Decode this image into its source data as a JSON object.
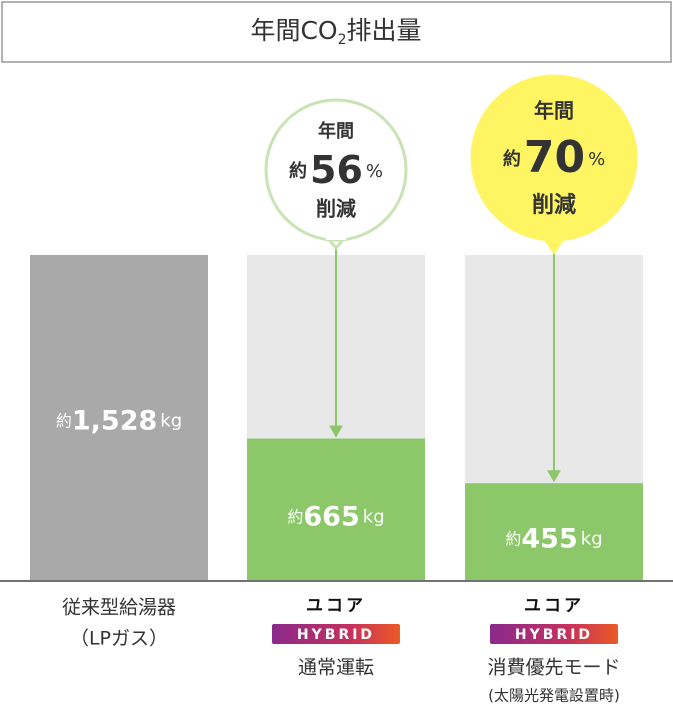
{
  "chart_data": {
    "type": "bar",
    "title": {
      "prefix": "年間CO",
      "subscript": "2",
      "suffix": "排出量"
    },
    "categories": [
      {
        "lines": [
          "従来型給湯器",
          "（LPガス）"
        ]
      },
      {
        "brand": "ユコア",
        "badge": "HYBRID",
        "lines": [
          "通常運転"
        ]
      },
      {
        "brand": "ユコア",
        "badge": "HYBRID",
        "lines": [
          "消費優先モード",
          "(太陽光発電設置時)"
        ]
      }
    ],
    "values": [
      1528,
      665,
      455
    ],
    "value_labels": [
      "約1,528kg",
      "約665kg",
      "約455kg"
    ],
    "colors": [
      "#a9a9a9",
      "#8cc86a",
      "#8cc86a"
    ],
    "reference_color": "#e8e8e8",
    "annotations": [
      {
        "bar": 1,
        "pre": "年間",
        "approx": "約",
        "value": 56,
        "unit": "%",
        "post": "削減",
        "fill": "#ffffff",
        "stroke": "#c9e3b4"
      },
      {
        "bar": 2,
        "pre": "年間",
        "approx": "約",
        "value": 70,
        "unit": "%",
        "post": "削減",
        "fill": "#fff462",
        "stroke": "#fff462"
      }
    ]
  }
}
